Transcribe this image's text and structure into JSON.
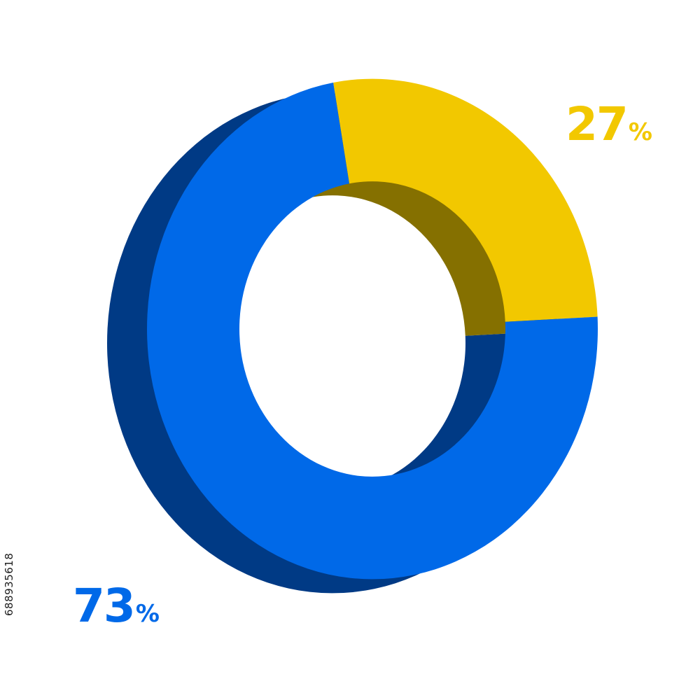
{
  "chart_data": {
    "type": "pie",
    "style": "3d-donut",
    "categories": [
      "",
      ""
    ],
    "values": [
      27,
      73
    ],
    "labels": [
      "27",
      "73"
    ],
    "percent_sign": "%",
    "colors": {
      "yellow_front": "#f2c800",
      "yellow_side": "#857000",
      "blue_front": "#0069e8",
      "blue_side": "#003a85"
    },
    "title": "",
    "legend": "none",
    "grid": false
  },
  "watermark": {
    "stock_id": "688935618"
  }
}
